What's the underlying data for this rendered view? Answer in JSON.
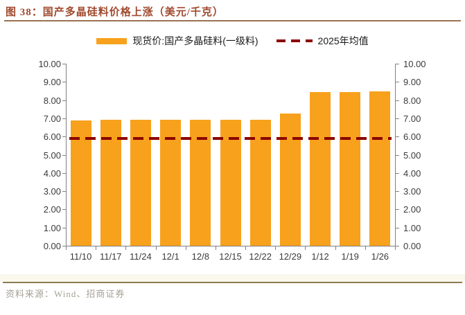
{
  "title": "图 38：国产多晶硅料价格上涨（美元/千克）",
  "source": "资料来源：Wind、招商证券",
  "legend": {
    "bar_label": "现货价:国产多晶硅料(一级料)",
    "line_label": "2025年均值"
  },
  "colors": {
    "bar": "#F7A11C",
    "mean_line": "#8B0000",
    "title_text": "#A0492E",
    "title_rule": "#9A7150",
    "footer_rule": "#8C7B52",
    "footer_text": "#A6A196",
    "axis": "#808080",
    "tick_label": "#3A3A3A"
  },
  "chart_data": {
    "type": "bar",
    "title": "国产多晶硅料价格上涨（美元/千克）",
    "categories": [
      "11/10",
      "11/17",
      "11/24",
      "12/1",
      "12/8",
      "12/15",
      "12/22",
      "12/29",
      "1/12",
      "1/19",
      "1/26"
    ],
    "series": [
      {
        "name": "现货价:国产多晶硅料(一级料)",
        "type": "bar",
        "values": [
          6.9,
          6.93,
          6.93,
          6.93,
          6.93,
          6.93,
          6.93,
          7.25,
          8.43,
          8.43,
          8.48
        ]
      },
      {
        "name": "2025年均值",
        "type": "dashed-line",
        "value": 5.88
      }
    ],
    "ylim": [
      0,
      10
    ],
    "ytick_step": 1.0,
    "ytick_labels": [
      "0.00",
      "1.00",
      "2.00",
      "3.00",
      "4.00",
      "5.00",
      "6.00",
      "7.00",
      "8.00",
      "9.00",
      "10.00"
    ],
    "dual_axis": true,
    "grid": false,
    "legend_position": "top"
  }
}
